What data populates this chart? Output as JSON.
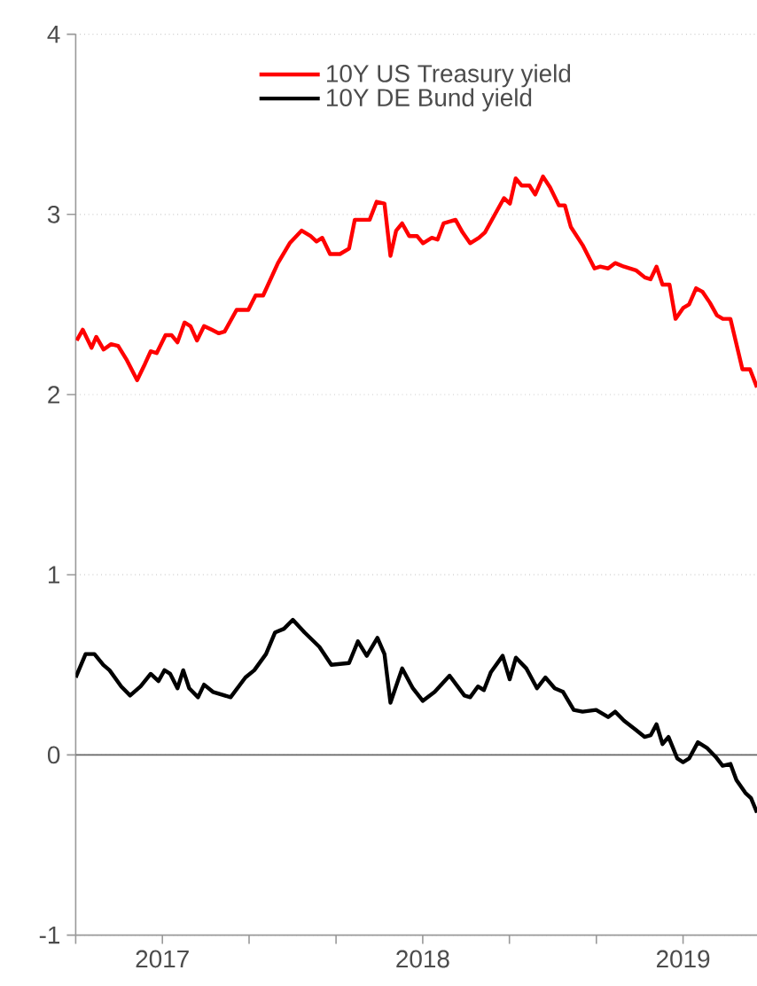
{
  "chart_data": {
    "type": "line",
    "xlim": [
      2016.667,
      2019.284
    ],
    "xticks": [
      {
        "value": 2016.667,
        "label": null
      },
      2017,
      {
        "value": 2017.333,
        "label": null
      },
      {
        "value": 2017.667,
        "label": null
      },
      2018,
      {
        "value": 2018.333,
        "label": null
      },
      {
        "value": 2018.667,
        "label": null
      },
      2019
    ],
    "ylim": [
      -1,
      4
    ],
    "yticks": [
      -1,
      0,
      1,
      2,
      3,
      4
    ],
    "grid": "y",
    "legend": "top",
    "marker": "none",
    "line_style": "solid",
    "ref_lines": [
      {
        "axis": "y",
        "value": 0,
        "color": "#666666"
      }
    ],
    "series": [
      {
        "name": "10Y US Treasury yield",
        "color": "#ff0000",
        "x": [
          2016.671,
          2016.694,
          2016.728,
          2016.746,
          2016.774,
          2016.803,
          2016.83,
          2016.864,
          2016.903,
          2016.933,
          2016.955,
          2016.978,
          2017.012,
          2017.035,
          2017.058,
          2017.085,
          2017.108,
          2017.133,
          2017.16,
          2017.189,
          2017.217,
          2017.239,
          2017.285,
          2017.33,
          2017.358,
          2017.387,
          2017.444,
          2017.489,
          2017.535,
          2017.569,
          2017.592,
          2017.614,
          2017.644,
          2017.682,
          2017.717,
          2017.739,
          2017.796,
          2017.823,
          2017.853,
          2017.876,
          2017.898,
          2017.921,
          2017.948,
          2017.978,
          2018.001,
          2018.035,
          2018.057,
          2018.08,
          2018.126,
          2018.153,
          2018.182,
          2018.216,
          2018.239,
          2018.285,
          2018.312,
          2018.335,
          2018.357,
          2018.38,
          2018.41,
          2018.432,
          2018.462,
          2018.489,
          2018.523,
          2018.546,
          2018.569,
          2018.614,
          2018.66,
          2018.682,
          2018.712,
          2018.739,
          2018.773,
          2018.819,
          2018.853,
          2018.875,
          2018.898,
          2018.921,
          2018.948,
          2018.971,
          2019.0,
          2019.023,
          2019.05,
          2019.075,
          2019.103,
          2019.13,
          2019.153,
          2019.182,
          2019.228,
          2019.257,
          2019.284
        ],
        "values": [
          2.3,
          2.36,
          2.26,
          2.32,
          2.25,
          2.28,
          2.27,
          2.19,
          2.08,
          2.17,
          2.24,
          2.23,
          2.33,
          2.33,
          2.29,
          2.4,
          2.38,
          2.3,
          2.38,
          2.36,
          2.34,
          2.35,
          2.47,
          2.47,
          2.55,
          2.55,
          2.73,
          2.84,
          2.91,
          2.88,
          2.85,
          2.87,
          2.78,
          2.78,
          2.81,
          2.97,
          2.97,
          3.07,
          3.06,
          2.77,
          2.91,
          2.95,
          2.88,
          2.88,
          2.84,
          2.87,
          2.86,
          2.95,
          2.97,
          2.9,
          2.84,
          2.87,
          2.9,
          3.02,
          3.09,
          3.06,
          3.2,
          3.16,
          3.16,
          3.11,
          3.21,
          3.15,
          3.05,
          3.05,
          2.93,
          2.83,
          2.7,
          2.71,
          2.7,
          2.73,
          2.71,
          2.69,
          2.65,
          2.64,
          2.71,
          2.61,
          2.61,
          2.42,
          2.48,
          2.5,
          2.59,
          2.57,
          2.51,
          2.44,
          2.42,
          2.42,
          2.14,
          2.14,
          2.04
        ]
      },
      {
        "name": "10Y DE Bund yield",
        "color": "#000000",
        "x": [
          2016.667,
          2016.705,
          2016.739,
          2016.773,
          2016.797,
          2016.842,
          2016.876,
          2016.916,
          2016.955,
          2016.985,
          2017.008,
          2017.03,
          2017.058,
          2017.08,
          2017.103,
          2017.137,
          2017.16,
          2017.194,
          2017.262,
          2017.319,
          2017.353,
          2017.398,
          2017.433,
          2017.467,
          2017.501,
          2017.546,
          2017.603,
          2017.649,
          2017.717,
          2017.751,
          2017.785,
          2017.826,
          2017.853,
          2017.876,
          2017.921,
          2017.962,
          2018.0,
          2018.046,
          2018.103,
          2018.16,
          2018.182,
          2018.212,
          2018.235,
          2018.262,
          2018.307,
          2018.334,
          2018.358,
          2018.398,
          2018.439,
          2018.471,
          2018.507,
          2018.539,
          2018.58,
          2018.614,
          2018.666,
          2018.712,
          2018.739,
          2018.773,
          2018.818,
          2018.852,
          2018.876,
          2018.898,
          2018.921,
          2018.944,
          2018.978,
          2019.0,
          2019.023,
          2019.057,
          2019.091,
          2019.125,
          2019.152,
          2019.182,
          2019.205,
          2019.239,
          2019.261,
          2019.284
        ],
        "values": [
          0.43,
          0.56,
          0.56,
          0.5,
          0.47,
          0.38,
          0.33,
          0.38,
          0.45,
          0.41,
          0.47,
          0.45,
          0.37,
          0.47,
          0.37,
          0.32,
          0.39,
          0.35,
          0.32,
          0.43,
          0.47,
          0.56,
          0.68,
          0.7,
          0.75,
          0.68,
          0.6,
          0.5,
          0.51,
          0.63,
          0.55,
          0.65,
          0.56,
          0.29,
          0.48,
          0.37,
          0.3,
          0.35,
          0.44,
          0.33,
          0.32,
          0.38,
          0.36,
          0.46,
          0.55,
          0.42,
          0.54,
          0.48,
          0.37,
          0.43,
          0.37,
          0.35,
          0.25,
          0.24,
          0.25,
          0.21,
          0.24,
          0.19,
          0.14,
          0.1,
          0.11,
          0.17,
          0.06,
          0.1,
          -0.02,
          -0.04,
          -0.02,
          0.07,
          0.04,
          -0.01,
          -0.06,
          -0.05,
          -0.14,
          -0.21,
          -0.24,
          -0.32
        ]
      }
    ]
  }
}
